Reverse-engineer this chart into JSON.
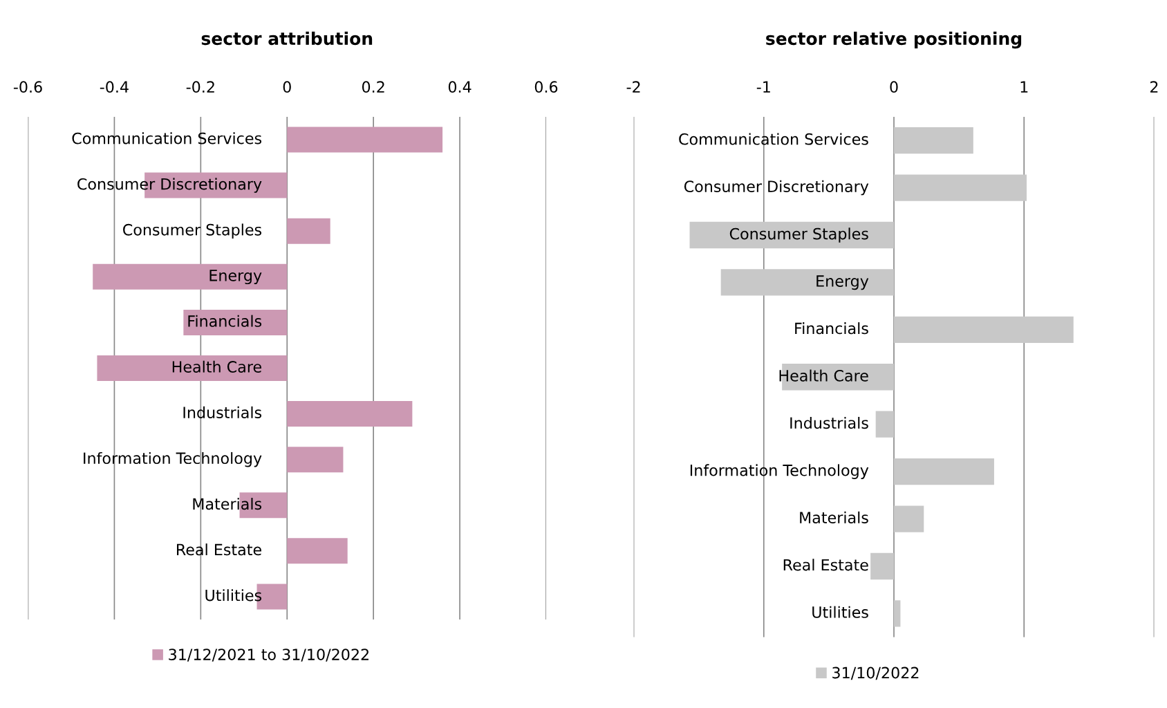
{
  "chart_data": [
    {
      "type": "bar",
      "orientation": "horizontal",
      "title": "sector attribution",
      "categories": [
        "Communication Services",
        "Consumer Discretionary",
        "Consumer Staples",
        "Energy",
        "Financials",
        "Health Care",
        "Industrials",
        "Information Technology",
        "Materials",
        "Real Estate",
        "Utilities"
      ],
      "series": [
        {
          "name": "31/12/2021 to 31/10/2022",
          "color": "#cc99b3",
          "values": [
            0.36,
            -0.33,
            0.1,
            -0.45,
            -0.24,
            -0.44,
            0.29,
            0.13,
            -0.11,
            0.14,
            -0.07
          ]
        }
      ],
      "xlim": [
        -0.6,
        0.6
      ],
      "xticks": [
        -0.6,
        -0.4,
        -0.2,
        0,
        0.2,
        0.4,
        0.6
      ],
      "grid": "x",
      "legend": "bottom"
    },
    {
      "type": "bar",
      "orientation": "horizontal",
      "title": "sector relative positioning",
      "categories": [
        "Communication Services",
        "Consumer Discretionary",
        "Consumer Staples",
        "Energy",
        "Financials",
        "Health Care",
        "Industrials",
        "Information Technology",
        "Materials",
        "Real Estate",
        "Utilities"
      ],
      "series": [
        {
          "name": "31/10/2022",
          "color": "#c8c8c8",
          "values": [
            0.61,
            1.02,
            -1.57,
            -1.33,
            1.38,
            -0.86,
            -0.14,
            0.77,
            0.23,
            -0.18,
            0.05
          ]
        }
      ],
      "xlim": [
        -2,
        2
      ],
      "xticks": [
        -2,
        -1,
        0,
        1,
        2
      ],
      "grid": "x",
      "legend": "bottom"
    }
  ]
}
